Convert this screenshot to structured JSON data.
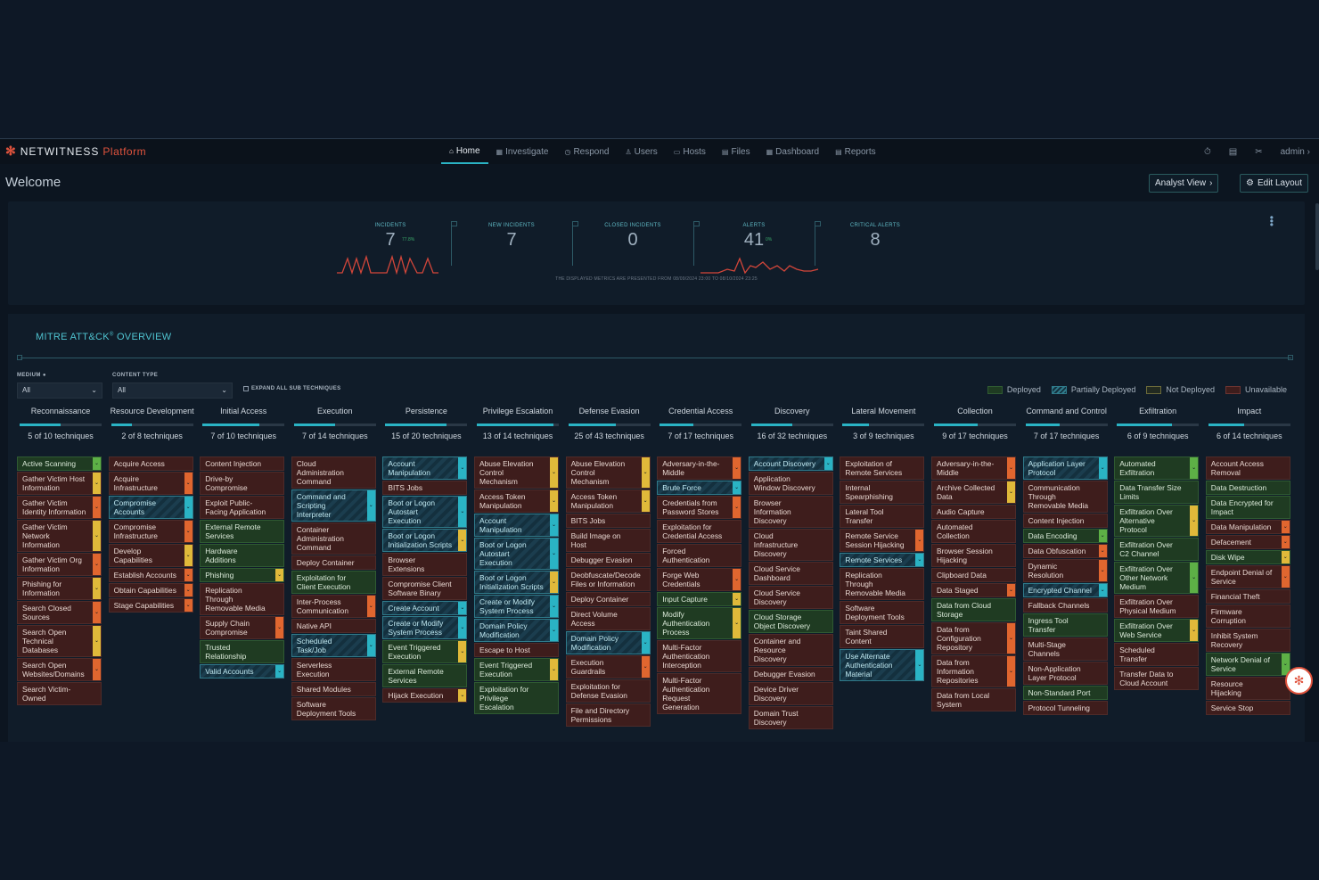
{
  "brand": {
    "name": "NETWITNESS",
    "suffix": "Platform"
  },
  "nav": {
    "tabs": [
      {
        "label": "Home",
        "active": true
      },
      {
        "label": "Investigate"
      },
      {
        "label": "Respond"
      },
      {
        "label": "Users"
      },
      {
        "label": "Hosts"
      },
      {
        "label": "Files"
      },
      {
        "label": "Dashboard"
      },
      {
        "label": "Reports"
      }
    ],
    "user": "admin"
  },
  "page": {
    "title": "Welcome",
    "analyst_view": "Analyst View",
    "edit_layout": "Edit Layout"
  },
  "metrics": [
    {
      "label": "INCIDENTS",
      "value": "7",
      "delta": "77.8%"
    },
    {
      "label": "NEW INCIDENTS",
      "value": "7"
    },
    {
      "label": "CLOSED INCIDENTS",
      "value": "0"
    },
    {
      "label": "ALERTS",
      "value": "41",
      "delta": "0%"
    },
    {
      "label": "CRITICAL ALERTS",
      "value": "8"
    }
  ],
  "metrics_note": "THE DISPLAYED METRICS ARE PRESENTED FROM 08/09/2024 23:00 TO 08/10/2024 23:25",
  "mitre": {
    "title": "MITRE ATT&CK",
    "title_sup": "®",
    "title_suffix": " OVERVIEW",
    "filters": {
      "severity_label": "MEDIUM",
      "severity_value": "All",
      "content_label": "CONTENT TYPE",
      "content_value": "All",
      "expand_label": "EXPAND ALL SUB TECHNIQUES"
    },
    "legend": [
      {
        "label": "Deployed",
        "color": "#1f3b22",
        "border": "#2f5a32"
      },
      {
        "label": "Partially Deployed",
        "color": "#1b3d4e",
        "border": "#2f7a8a"
      },
      {
        "label": "Not Deployed",
        "color": "#222a21",
        "border": "#6b6a3a"
      },
      {
        "label": "Unavailable",
        "color": "#3e1d1c",
        "border": "#6b3431"
      }
    ],
    "tactics": [
      {
        "name": "Reconnaissance",
        "count": "5 of 10 techniques",
        "fraction": 0.5,
        "techniques": [
          [
            "Active Scanning",
            "d",
            "g"
          ],
          [
            "Gather Victim Host Information",
            "u",
            "y"
          ],
          [
            "Gather Victim Identity Information",
            "u",
            "o"
          ],
          [
            "Gather Victim Network Information",
            "u",
            "y"
          ],
          [
            "Gather Victim Org Information",
            "u",
            "o"
          ],
          [
            "Phishing for Information",
            "u",
            "y"
          ],
          [
            "Search Closed Sources",
            "u",
            "o"
          ],
          [
            "Search Open Technical Databases",
            "u",
            "y"
          ],
          [
            "Search Open Websites/Domains",
            "u",
            "o"
          ],
          [
            "Search Victim-Owned",
            "u",
            ""
          ]
        ]
      },
      {
        "name": "Resource Development",
        "count": "2 of 8 techniques",
        "fraction": 0.25,
        "techniques": [
          [
            "Acquire Access",
            "u",
            ""
          ],
          [
            "Acquire Infrastructure",
            "u",
            "o"
          ],
          [
            "Compromise Accounts",
            "p",
            "c"
          ],
          [
            "Compromise Infrastructure",
            "u",
            "o"
          ],
          [
            "Develop Capabilities",
            "u",
            "y"
          ],
          [
            "Establish Accounts",
            "u",
            "o"
          ],
          [
            "Obtain Capabilities",
            "u",
            "o"
          ],
          [
            "Stage Capabilities",
            "u",
            "o"
          ]
        ]
      },
      {
        "name": "Initial Access",
        "count": "7 of 10 techniques",
        "fraction": 0.7,
        "techniques": [
          [
            "Content Injection",
            "u",
            ""
          ],
          [
            "Drive-by Compromise",
            "u",
            ""
          ],
          [
            "Exploit Public-Facing Application",
            "u",
            ""
          ],
          [
            "External Remote Services",
            "d",
            ""
          ],
          [
            "Hardware Additions",
            "d",
            ""
          ],
          [
            "Phishing",
            "d",
            "y"
          ],
          [
            "Replication Through Removable Media",
            "u",
            ""
          ],
          [
            "Supply Chain Compromise",
            "u",
            "o"
          ],
          [
            "Trusted Relationship",
            "d",
            ""
          ],
          [
            "Valid Accounts",
            "p",
            "c"
          ]
        ]
      },
      {
        "name": "Execution",
        "count": "7 of 14 techniques",
        "fraction": 0.5,
        "techniques": [
          [
            "Cloud Administration Command",
            "u",
            ""
          ],
          [
            "Command and Scripting Interpreter",
            "p",
            "c"
          ],
          [
            "Container Administration Command",
            "u",
            ""
          ],
          [
            "Deploy Container",
            "u",
            ""
          ],
          [
            "Exploitation for Client Execution",
            "d",
            ""
          ],
          [
            "Inter-Process Communication",
            "u",
            "o"
          ],
          [
            "Native API",
            "u",
            ""
          ],
          [
            "Scheduled Task/Job",
            "p",
            "c"
          ],
          [
            "Serverless Execution",
            "u",
            ""
          ],
          [
            "Shared Modules",
            "u",
            ""
          ],
          [
            "Software Deployment Tools",
            "u",
            ""
          ]
        ]
      },
      {
        "name": "Persistence",
        "count": "15 of 20 techniques",
        "fraction": 0.75,
        "techniques": [
          [
            "Account Manipulation",
            "p",
            "c"
          ],
          [
            "BITS Jobs",
            "u",
            ""
          ],
          [
            "Boot or Logon Autostart Execution",
            "p",
            "c"
          ],
          [
            "Boot or Logon Initialization Scripts",
            "p",
            "y"
          ],
          [
            "Browser Extensions",
            "u",
            ""
          ],
          [
            "Compromise Client Software Binary",
            "u",
            ""
          ],
          [
            "Create Account",
            "p",
            "c"
          ],
          [
            "Create or Modify System Process",
            "p",
            "c"
          ],
          [
            "Event Triggered Execution",
            "d",
            "y"
          ],
          [
            "External Remote Services",
            "d",
            ""
          ],
          [
            "Hijack Execution",
            "u",
            "y"
          ]
        ]
      },
      {
        "name": "Privilege Escalation",
        "count": "13 of 14 techniques",
        "fraction": 0.93,
        "techniques": [
          [
            "Abuse Elevation Control Mechanism",
            "u",
            "y"
          ],
          [
            "Access Token Manipulation",
            "u",
            "y"
          ],
          [
            "Account Manipulation",
            "p",
            "c"
          ],
          [
            "Boot or Logon Autostart Execution",
            "p",
            "c"
          ],
          [
            "Boot or Logon Initialization Scripts",
            "p",
            "y"
          ],
          [
            "Create or Modify System Process",
            "p",
            "c"
          ],
          [
            "Domain Policy Modification",
            "p",
            "c"
          ],
          [
            "Escape to Host",
            "u",
            ""
          ],
          [
            "Event Triggered Execution",
            "d",
            "y"
          ],
          [
            "Exploitation for Privilege Escalation",
            "d",
            ""
          ]
        ]
      },
      {
        "name": "Defense Evasion",
        "count": "25 of 43 techniques",
        "fraction": 0.58,
        "techniques": [
          [
            "Abuse Elevation Control Mechanism",
            "u",
            "y"
          ],
          [
            "Access Token Manipulation",
            "u",
            "y"
          ],
          [
            "BITS Jobs",
            "u",
            ""
          ],
          [
            "Build Image on Host",
            "u",
            ""
          ],
          [
            "Debugger Evasion",
            "u",
            ""
          ],
          [
            "Deobfuscate/Decode Files or Information",
            "u",
            ""
          ],
          [
            "Deploy Container",
            "u",
            ""
          ],
          [
            "Direct Volume Access",
            "u",
            ""
          ],
          [
            "Domain Policy Modification",
            "p",
            "c"
          ],
          [
            "Execution Guardrails",
            "u",
            "o"
          ],
          [
            "Exploitation for Defense Evasion",
            "u",
            ""
          ],
          [
            "File and Directory Permissions",
            "u",
            ""
          ]
        ]
      },
      {
        "name": "Credential Access",
        "count": "7 of 17 techniques",
        "fraction": 0.41,
        "techniques": [
          [
            "Adversary-in-the-Middle",
            "u",
            "o"
          ],
          [
            "Brute Force",
            "p",
            "c"
          ],
          [
            "Credentials from Password Stores",
            "u",
            "o"
          ],
          [
            "Exploitation for Credential Access",
            "u",
            ""
          ],
          [
            "Forced Authentication",
            "u",
            ""
          ],
          [
            "Forge Web Credentials",
            "u",
            "o"
          ],
          [
            "Input Capture",
            "d",
            "y"
          ],
          [
            "Modify Authentication Process",
            "d",
            "y"
          ],
          [
            "Multi-Factor Authentication Interception",
            "u",
            ""
          ],
          [
            "Multi-Factor Authentication Request Generation",
            "u",
            ""
          ]
        ]
      },
      {
        "name": "Discovery",
        "count": "16 of 32 techniques",
        "fraction": 0.5,
        "techniques": [
          [
            "Account Discovery",
            "p",
            "c"
          ],
          [
            "Application Window Discovery",
            "u",
            ""
          ],
          [
            "Browser Information Discovery",
            "u",
            ""
          ],
          [
            "Cloud Infrastructure Discovery",
            "u",
            ""
          ],
          [
            "Cloud Service Dashboard",
            "u",
            ""
          ],
          [
            "Cloud Service Discovery",
            "u",
            ""
          ],
          [
            "Cloud Storage Object Discovery",
            "d",
            ""
          ],
          [
            "Container and Resource Discovery",
            "u",
            ""
          ],
          [
            "Debugger Evasion",
            "u",
            ""
          ],
          [
            "Device Driver Discovery",
            "u",
            ""
          ],
          [
            "Domain Trust Discovery",
            "u",
            ""
          ]
        ]
      },
      {
        "name": "Lateral Movement",
        "count": "3 of 9 techniques",
        "fraction": 0.33,
        "techniques": [
          [
            "Exploitation of Remote Services",
            "u",
            ""
          ],
          [
            "Internal Spearphishing",
            "u",
            ""
          ],
          [
            "Lateral Tool Transfer",
            "u",
            ""
          ],
          [
            "Remote Service Session Hijacking",
            "u",
            "o"
          ],
          [
            "Remote Services",
            "p",
            "c"
          ],
          [
            "Replication Through Removable Media",
            "u",
            ""
          ],
          [
            "Software Deployment Tools",
            "u",
            ""
          ],
          [
            "Taint Shared Content",
            "u",
            ""
          ],
          [
            "Use Alternate Authentication Material",
            "p",
            "c"
          ]
        ]
      },
      {
        "name": "Collection",
        "count": "9 of 17 techniques",
        "fraction": 0.53,
        "techniques": [
          [
            "Adversary-in-the-Middle",
            "u",
            "o"
          ],
          [
            "Archive Collected Data",
            "u",
            "y"
          ],
          [
            "Audio Capture",
            "u",
            ""
          ],
          [
            "Automated Collection",
            "u",
            ""
          ],
          [
            "Browser Session Hijacking",
            "u",
            ""
          ],
          [
            "Clipboard Data",
            "u",
            ""
          ],
          [
            "Data Staged",
            "u",
            "o"
          ],
          [
            "Data from Cloud Storage",
            "d",
            ""
          ],
          [
            "Data from Configuration Repository",
            "u",
            "o"
          ],
          [
            "Data from Information Repositories",
            "u",
            "o"
          ],
          [
            "Data from Local System",
            "u",
            ""
          ]
        ]
      },
      {
        "name": "Command and Control",
        "count": "7 of 17 techniques",
        "fraction": 0.41,
        "techniques": [
          [
            "Application Layer Protocol",
            "p",
            "c"
          ],
          [
            "Communication Through Removable Media",
            "u",
            ""
          ],
          [
            "Content Injection",
            "u",
            ""
          ],
          [
            "Data Encoding",
            "d",
            "g"
          ],
          [
            "Data Obfuscation",
            "u",
            "o"
          ],
          [
            "Dynamic Resolution",
            "u",
            "o"
          ],
          [
            "Encrypted Channel",
            "p",
            "c"
          ],
          [
            "Fallback Channels",
            "u",
            ""
          ],
          [
            "Ingress Tool Transfer",
            "d",
            ""
          ],
          [
            "Multi-Stage Channels",
            "u",
            ""
          ],
          [
            "Non-Application Layer Protocol",
            "u",
            ""
          ],
          [
            "Non-Standard Port",
            "d",
            ""
          ],
          [
            "Protocol Tunneling",
            "u",
            ""
          ]
        ]
      },
      {
        "name": "Exfiltration",
        "count": "6 of 9 techniques",
        "fraction": 0.67,
        "techniques": [
          [
            "Automated Exfiltration",
            "d",
            "g"
          ],
          [
            "Data Transfer Size Limits",
            "d",
            ""
          ],
          [
            "Exfiltration Over Alternative Protocol",
            "d",
            "y"
          ],
          [
            "Exfiltration Over C2 Channel",
            "d",
            ""
          ],
          [
            "Exfiltration Over Other Network Medium",
            "d",
            "g"
          ],
          [
            "Exfiltration Over Physical Medium",
            "u",
            ""
          ],
          [
            "Exfiltration Over Web Service",
            "d",
            "y"
          ],
          [
            "Scheduled Transfer",
            "u",
            ""
          ],
          [
            "Transfer Data to Cloud Account",
            "u",
            ""
          ]
        ]
      },
      {
        "name": "Impact",
        "count": "6 of 14 techniques",
        "fraction": 0.43,
        "techniques": [
          [
            "Account Access Removal",
            "u",
            ""
          ],
          [
            "Data Destruction",
            "d",
            ""
          ],
          [
            "Data Encrypted for Impact",
            "d",
            ""
          ],
          [
            "Data Manipulation",
            "u",
            "o"
          ],
          [
            "Defacement",
            "u",
            "o"
          ],
          [
            "Disk Wipe",
            "d",
            "y"
          ],
          [
            "Endpoint Denial of Service",
            "u",
            "o"
          ],
          [
            "Financial Theft",
            "u",
            ""
          ],
          [
            "Firmware Corruption",
            "u",
            ""
          ],
          [
            "Inhibit System Recovery",
            "u",
            ""
          ],
          [
            "Network Denial of Service",
            "d",
            "g"
          ],
          [
            "Resource Hijacking",
            "u",
            ""
          ],
          [
            "Service Stop",
            "u",
            ""
          ]
        ]
      }
    ]
  }
}
